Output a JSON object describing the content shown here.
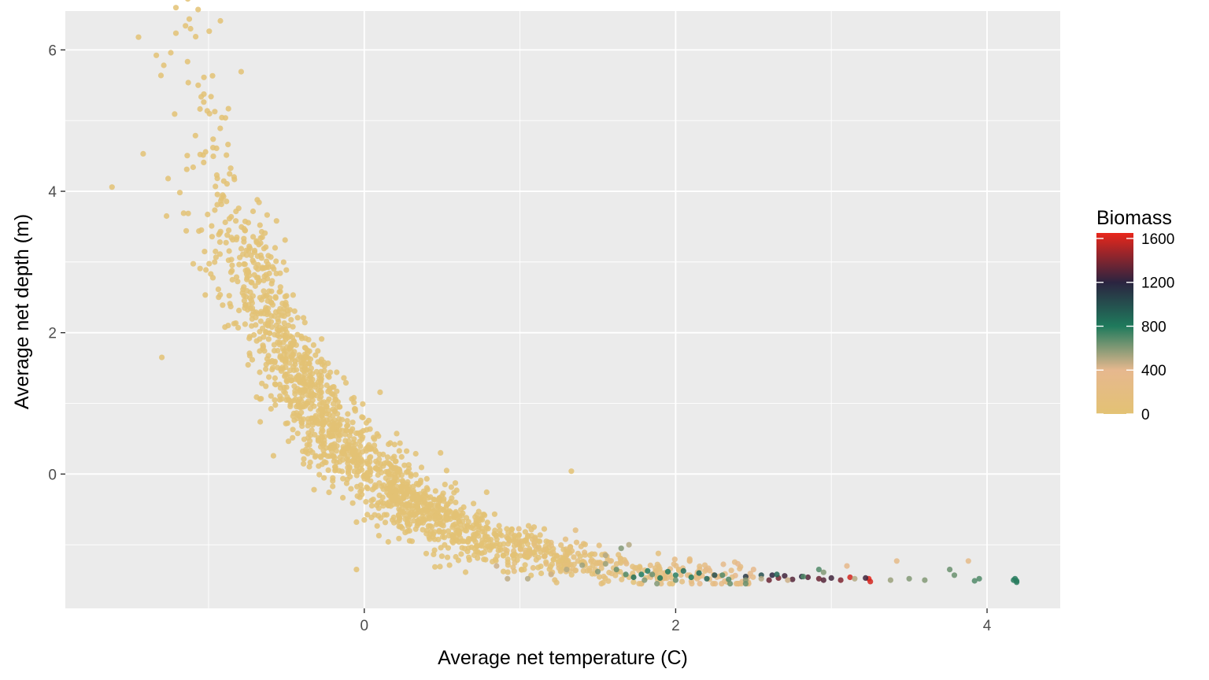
{
  "chart_data": {
    "type": "scatter",
    "xlabel": "Average net temperature (C)",
    "ylabel": "Average net depth (m)",
    "xlim": [
      -1.92,
      4.47
    ],
    "ylim": [
      -1.9,
      6.55
    ],
    "xticks": [
      0,
      2,
      4
    ],
    "yticks": [
      0,
      2,
      4,
      6
    ],
    "xtick_labels": [
      "0",
      "2",
      "4"
    ],
    "ytick_labels": [
      "0",
      "2",
      "4",
      "6"
    ],
    "grid": true,
    "background": "#ebebeb",
    "legend": {
      "title": "Biomass",
      "position": "right",
      "min": 0,
      "max": 1650,
      "ticks": [
        0,
        400,
        800,
        1200,
        1600
      ],
      "tick_labels": [
        "0",
        "400",
        "800",
        "1200",
        "1600"
      ],
      "color_stops": [
        {
          "value": 0,
          "color": "#e3c274"
        },
        {
          "value": 400,
          "color": "#e6b88e"
        },
        {
          "value": 800,
          "color": "#1f7a5c"
        },
        {
          "value": 1200,
          "color": "#2b2440"
        },
        {
          "value": 1650,
          "color": "#e8261b"
        }
      ]
    },
    "highlight_points": [
      [
        -1.45,
        6.18,
        0
      ],
      [
        -1.42,
        4.53,
        0
      ],
      [
        -1.62,
        4.06,
        0
      ],
      [
        -1.26,
        4.18,
        0
      ],
      [
        -1.14,
        4.31,
        0
      ],
      [
        -1.27,
        3.65,
        0
      ],
      [
        -1.16,
        3.69,
        0
      ],
      [
        -0.98,
        3.51,
        0
      ],
      [
        -0.88,
        3.38,
        0
      ],
      [
        1.33,
        0.04,
        0
      ],
      [
        0.49,
        0.3,
        0
      ],
      [
        -0.05,
        -1.35,
        0
      ],
      [
        -1.3,
        1.65,
        0
      ],
      [
        3.42,
        -1.23,
        300
      ],
      [
        3.88,
        -1.23,
        300
      ],
      [
        2.4,
        -1.27,
        350
      ],
      [
        2.5,
        -1.35,
        350
      ],
      [
        2.95,
        -1.39,
        600
      ],
      [
        4.18,
        -1.48,
        780
      ],
      [
        4.19,
        -1.51,
        780
      ],
      [
        4.19,
        -1.53,
        780
      ],
      [
        4.17,
        -1.5,
        780
      ],
      [
        3.92,
        -1.51,
        700
      ],
      [
        3.95,
        -1.48,
        700
      ],
      [
        3.76,
        -1.35,
        650
      ],
      [
        3.79,
        -1.43,
        650
      ],
      [
        3.5,
        -1.48,
        600
      ],
      [
        3.6,
        -1.5,
        600
      ],
      [
        3.38,
        -1.5,
        550
      ],
      [
        3.24,
        -1.48,
        1650
      ],
      [
        3.25,
        -1.52,
        1600
      ],
      [
        3.12,
        -1.46,
        1600
      ],
      [
        3.22,
        -1.47,
        1250
      ],
      [
        3.06,
        -1.5,
        1400
      ],
      [
        2.95,
        -1.5,
        1300
      ],
      [
        2.92,
        -1.48,
        1350
      ],
      [
        2.85,
        -1.46,
        1300
      ],
      [
        3.0,
        -1.47,
        1250
      ],
      [
        2.81,
        -1.45,
        1200
      ],
      [
        2.75,
        -1.49,
        1300
      ],
      [
        2.7,
        -1.44,
        1250
      ],
      [
        2.66,
        -1.47,
        1380
      ],
      [
        2.62,
        -1.43,
        1200
      ],
      [
        2.6,
        -1.5,
        1350
      ],
      [
        2.55,
        -1.43,
        1000
      ],
      [
        2.45,
        -1.45,
        1100
      ],
      [
        2.34,
        -1.49,
        700
      ],
      [
        2.45,
        -1.5,
        600
      ],
      [
        2.45,
        -1.55,
        650
      ],
      [
        2.25,
        -1.43,
        1000
      ],
      [
        2.2,
        -1.48,
        900
      ],
      [
        2.15,
        -1.4,
        850
      ],
      [
        2.1,
        -1.46,
        800
      ],
      [
        2.05,
        -1.37,
        850
      ],
      [
        2.0,
        -1.43,
        780
      ],
      [
        1.95,
        -1.38,
        800
      ],
      [
        1.9,
        -1.47,
        820
      ],
      [
        1.82,
        -1.37,
        780
      ],
      [
        1.78,
        -1.42,
        800
      ],
      [
        1.73,
        -1.46,
        850
      ],
      [
        1.68,
        -1.42,
        700
      ],
      [
        1.62,
        -1.35,
        650
      ],
      [
        1.55,
        -1.27,
        550
      ],
      [
        1.5,
        -1.38,
        600
      ],
      [
        1.4,
        -1.29,
        550
      ],
      [
        1.3,
        -1.35,
        500
      ],
      [
        1.2,
        -1.42,
        450
      ],
      [
        1.05,
        -1.48,
        500
      ],
      [
        0.92,
        -1.48,
        480
      ],
      [
        0.85,
        -1.3,
        450
      ],
      [
        1.8,
        -1.5,
        600
      ],
      [
        2.0,
        -1.5,
        650
      ],
      [
        1.88,
        -1.55,
        600
      ],
      [
        2.92,
        -1.35,
        700
      ],
      [
        2.82,
        -1.45,
        700
      ],
      [
        2.55,
        -1.48,
        500
      ],
      [
        2.35,
        -1.55,
        650
      ],
      [
        2.3,
        -1.43,
        700
      ],
      [
        1.85,
        -1.42,
        650
      ],
      [
        1.7,
        -1.0,
        500
      ],
      [
        1.65,
        -1.05,
        600
      ],
      [
        1.55,
        -1.15,
        500
      ],
      [
        2.65,
        -1.42,
        900
      ],
      [
        2.72,
        -1.5,
        450
      ],
      [
        3.15,
        -1.48,
        500
      ],
      [
        3.1,
        -1.3,
        350
      ]
    ]
  }
}
